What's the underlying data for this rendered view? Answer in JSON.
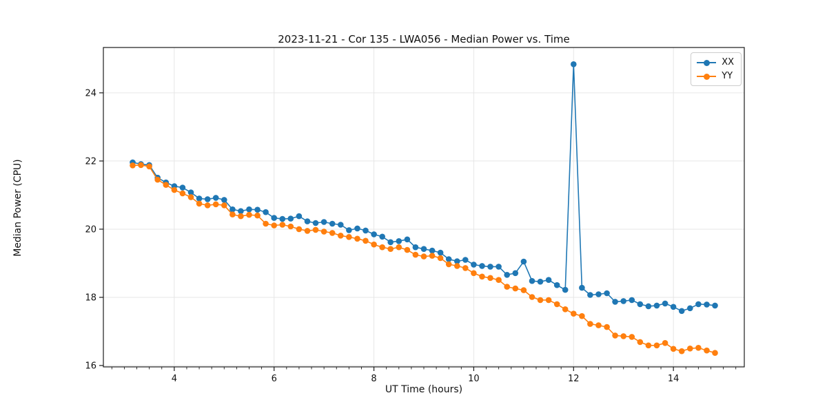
{
  "chart_data": {
    "type": "line",
    "title": "2023-11-21 - Cor 135 - LWA056 - Median Power vs. Time",
    "xlabel": "UT Time (hours)",
    "ylabel": "Median Power (CPU)",
    "xlim": [
      2.58,
      15.42
    ],
    "ylim": [
      15.96,
      25.33
    ],
    "x_major_ticks": [
      4,
      6,
      8,
      10,
      12,
      14
    ],
    "x_minor_step": 0.25,
    "y_major_ticks": [
      16,
      18,
      20,
      22,
      24
    ],
    "grid": "major",
    "grid_color": "#e6e6e6",
    "spine_color": "#1a1a1a",
    "legend_position": "upper right",
    "marker": "circle",
    "x": [
      3.167,
      3.333,
      3.5,
      3.667,
      3.833,
      4.0,
      4.167,
      4.333,
      4.5,
      4.667,
      4.833,
      5.0,
      5.167,
      5.333,
      5.5,
      5.667,
      5.833,
      6.0,
      6.167,
      6.333,
      6.5,
      6.667,
      6.833,
      7.0,
      7.167,
      7.333,
      7.5,
      7.667,
      7.833,
      8.0,
      8.167,
      8.333,
      8.5,
      8.667,
      8.833,
      9.0,
      9.167,
      9.333,
      9.5,
      9.667,
      9.833,
      10.0,
      10.167,
      10.333,
      10.5,
      10.667,
      10.833,
      11.0,
      11.167,
      11.333,
      11.5,
      11.667,
      11.833,
      12.0,
      12.167,
      12.333,
      12.5,
      12.667,
      12.833,
      13.0,
      13.167,
      13.333,
      13.5,
      13.667,
      13.833,
      14.0,
      14.167,
      14.333,
      14.5,
      14.667,
      14.833
    ],
    "series": [
      {
        "name": "XX",
        "color": "#1f77b4",
        "values": [
          21.96,
          21.91,
          21.88,
          21.51,
          21.37,
          21.26,
          21.22,
          21.08,
          20.9,
          20.88,
          20.92,
          20.86,
          20.58,
          20.53,
          20.58,
          20.57,
          20.5,
          20.33,
          20.3,
          20.31,
          20.38,
          20.23,
          20.18,
          20.21,
          20.16,
          20.13,
          19.97,
          20.02,
          19.96,
          19.85,
          19.78,
          19.62,
          19.65,
          19.7,
          19.47,
          19.42,
          19.37,
          19.31,
          19.12,
          19.06,
          19.1,
          18.96,
          18.92,
          18.9,
          18.9,
          18.66,
          18.71,
          19.05,
          18.48,
          18.46,
          18.51,
          18.36,
          18.22,
          24.84,
          18.28,
          18.07,
          18.09,
          18.12,
          17.87,
          17.89,
          17.92,
          17.8,
          17.74,
          17.76,
          17.82,
          17.72,
          17.6,
          17.68,
          17.8,
          17.79,
          17.76
        ]
      },
      {
        "name": "YY",
        "color": "#ff7f0e",
        "values": [
          21.87,
          21.88,
          21.84,
          21.45,
          21.3,
          21.15,
          21.05,
          20.94,
          20.75,
          20.7,
          20.73,
          20.7,
          20.43,
          20.38,
          20.42,
          20.4,
          20.16,
          20.11,
          20.13,
          20.08,
          20.0,
          19.95,
          19.98,
          19.93,
          19.89,
          19.81,
          19.77,
          19.72,
          19.66,
          19.55,
          19.47,
          19.42,
          19.47,
          19.39,
          19.25,
          19.2,
          19.22,
          19.15,
          18.97,
          18.92,
          18.86,
          18.71,
          18.61,
          18.57,
          18.51,
          18.31,
          18.26,
          18.21,
          18.01,
          17.92,
          17.92,
          17.8,
          17.65,
          17.52,
          17.45,
          17.22,
          17.18,
          17.13,
          16.88,
          16.86,
          16.84,
          16.69,
          16.59,
          16.59,
          16.66,
          16.49,
          16.42,
          16.5,
          16.52,
          16.44,
          16.37
        ]
      }
    ]
  }
}
